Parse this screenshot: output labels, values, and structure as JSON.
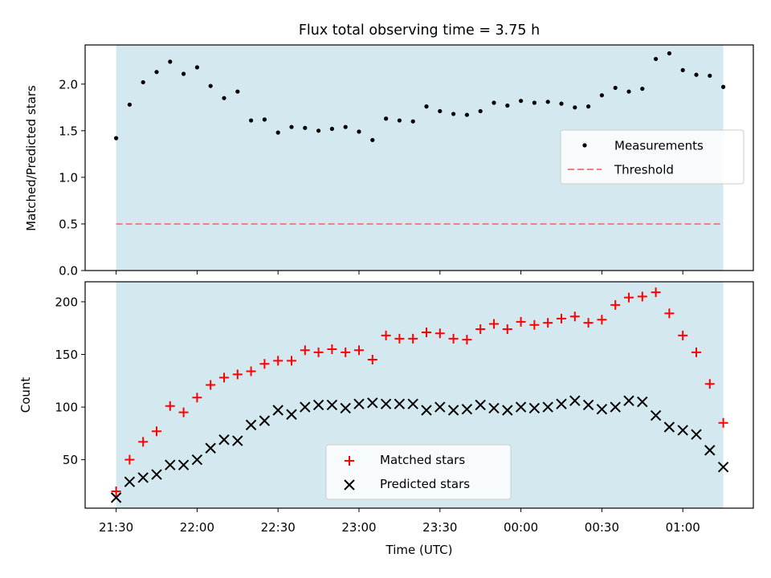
{
  "figure": {
    "title": "Flux total observing time = 3.75 h"
  },
  "colors": {
    "shade": "#d4e9ef",
    "threshold": "#f08080",
    "measurement": "#000000",
    "matched": "#ff0000",
    "predicted": "#000000"
  },
  "chart_data": [
    {
      "type": "scatter",
      "ylabel": "Matched/Predicted stars",
      "ylim": [
        0,
        2.42
      ],
      "yticks": [
        "0.0",
        "0.5",
        "1.0",
        "1.5",
        "2.0"
      ],
      "legend_position": "center-right",
      "shaded_range": [
        "21:30",
        "01:15"
      ],
      "series": [
        {
          "name": "Measurements",
          "marker": "dot",
          "x": [
            "21:30",
            "21:35",
            "21:40",
            "21:45",
            "21:50",
            "21:55",
            "22:00",
            "22:05",
            "22:10",
            "22:15",
            "22:20",
            "22:25",
            "22:30",
            "22:35",
            "22:40",
            "22:45",
            "22:50",
            "22:55",
            "23:00",
            "23:05",
            "23:10",
            "23:15",
            "23:20",
            "23:25",
            "23:30",
            "23:35",
            "23:40",
            "23:45",
            "23:50",
            "23:55",
            "00:00",
            "00:05",
            "00:10",
            "00:15",
            "00:20",
            "00:25",
            "00:30",
            "00:35",
            "00:40",
            "00:45",
            "00:50",
            "00:55",
            "01:00",
            "01:05",
            "01:10",
            "01:15"
          ],
          "y": [
            1.42,
            1.78,
            2.02,
            2.13,
            2.24,
            2.11,
            2.18,
            1.98,
            1.85,
            1.92,
            1.61,
            1.62,
            1.48,
            1.54,
            1.53,
            1.5,
            1.52,
            1.54,
            1.49,
            1.4,
            1.63,
            1.61,
            1.6,
            1.76,
            1.71,
            1.68,
            1.67,
            1.71,
            1.8,
            1.77,
            1.82,
            1.8,
            1.81,
            1.79,
            1.75,
            1.76,
            1.88,
            1.96,
            1.92,
            1.95,
            2.27,
            2.33,
            2.15,
            2.1,
            2.09,
            1.97
          ]
        },
        {
          "name": "Threshold",
          "style": "dashed",
          "x": [
            "21:30",
            "01:15"
          ],
          "y": [
            0.5,
            0.5
          ]
        }
      ]
    },
    {
      "type": "scatter",
      "xlabel": "Time (UTC)",
      "ylabel": "Count",
      "ylim": [
        4,
        219
      ],
      "yticks": [
        "50",
        "100",
        "150",
        "200"
      ],
      "xticks": [
        "21:30",
        "22:00",
        "22:30",
        "23:00",
        "23:30",
        "00:00",
        "00:30",
        "01:00"
      ],
      "legend_position": "lower-center",
      "shaded_range": [
        "21:30",
        "01:15"
      ],
      "series": [
        {
          "name": "Matched stars",
          "marker": "plus",
          "x": [
            "21:30",
            "21:35",
            "21:40",
            "21:45",
            "21:50",
            "21:55",
            "22:00",
            "22:05",
            "22:10",
            "22:15",
            "22:20",
            "22:25",
            "22:30",
            "22:35",
            "22:40",
            "22:45",
            "22:50",
            "22:55",
            "23:00",
            "23:05",
            "23:10",
            "23:15",
            "23:20",
            "23:25",
            "23:30",
            "23:35",
            "23:40",
            "23:45",
            "23:50",
            "23:55",
            "00:00",
            "00:05",
            "00:10",
            "00:15",
            "00:20",
            "00:25",
            "00:30",
            "00:35",
            "00:40",
            "00:45",
            "00:50",
            "00:55",
            "01:00",
            "01:05",
            "01:10",
            "01:15"
          ],
          "y": [
            20,
            50,
            67,
            77,
            101,
            95,
            109,
            121,
            128,
            131,
            134,
            141,
            144,
            144,
            154,
            152,
            155,
            152,
            154,
            145,
            168,
            165,
            165,
            171,
            170,
            165,
            164,
            174,
            179,
            174,
            181,
            178,
            180,
            184,
            186,
            180,
            183,
            197,
            204,
            205,
            209,
            189,
            168,
            152,
            122,
            85
          ]
        },
        {
          "name": "Predicted stars",
          "marker": "x",
          "x": [
            "21:30",
            "21:35",
            "21:40",
            "21:45",
            "21:50",
            "21:55",
            "22:00",
            "22:05",
            "22:10",
            "22:15",
            "22:20",
            "22:25",
            "22:30",
            "22:35",
            "22:40",
            "22:45",
            "22:50",
            "22:55",
            "23:00",
            "23:05",
            "23:10",
            "23:15",
            "23:20",
            "23:25",
            "23:30",
            "23:35",
            "23:40",
            "23:45",
            "23:50",
            "23:55",
            "00:00",
            "00:05",
            "00:10",
            "00:15",
            "00:20",
            "00:25",
            "00:30",
            "00:35",
            "00:40",
            "00:45",
            "00:50",
            "00:55",
            "01:00",
            "01:05",
            "01:10",
            "01:15"
          ],
          "y": [
            14,
            29,
            33,
            36,
            45,
            45,
            50,
            61,
            69,
            68,
            83,
            87,
            97,
            93,
            100,
            102,
            102,
            99,
            103,
            104,
            103,
            103,
            103,
            97,
            100,
            97,
            98,
            102,
            99,
            97,
            100,
            99,
            100,
            103,
            106,
            102,
            98,
            100,
            106,
            105,
            92,
            81,
            78,
            74,
            59,
            43
          ]
        }
      ]
    }
  ]
}
